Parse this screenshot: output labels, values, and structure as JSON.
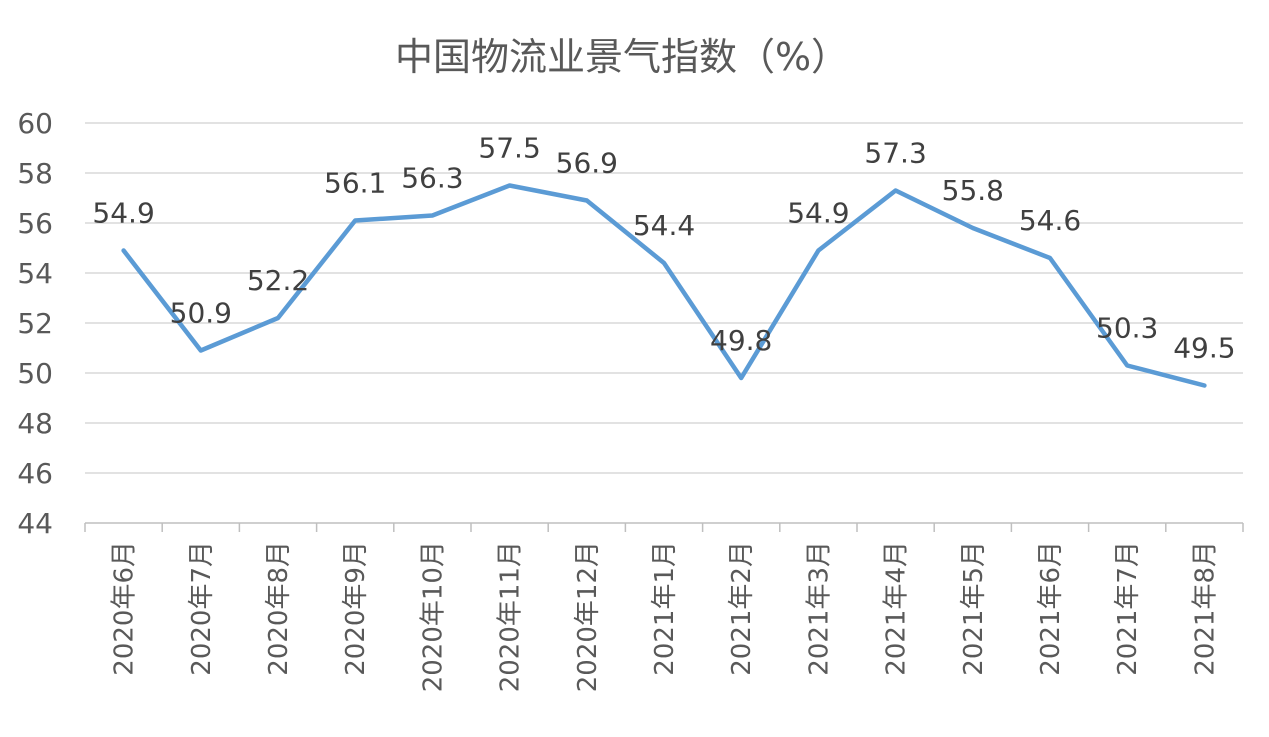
{
  "chart_data": {
    "type": "line",
    "title": "中国物流业景气指数（%）",
    "categories": [
      "2020年6月",
      "2020年7月",
      "2020年8月",
      "2020年9月",
      "2020年10月",
      "2020年11月",
      "2020年12月",
      "2021年1月",
      "2021年2月",
      "2021年3月",
      "2021年4月",
      "2021年5月",
      "2021年6月",
      "2021年7月",
      "2021年8月"
    ],
    "series": [
      {
        "values": [
          54.9,
          50.9,
          52.2,
          56.1,
          56.3,
          57.5,
          56.9,
          54.4,
          49.8,
          54.9,
          57.3,
          55.8,
          54.6,
          50.3,
          49.5
        ]
      }
    ],
    "data_labels": [
      "54.9",
      "50.9",
      "52.2",
      "56.1",
      "56.3",
      "57.5",
      "56.9",
      "54.4",
      "49.8",
      "54.9",
      "57.3",
      "55.8",
      "54.6",
      "50.3",
      "49.5"
    ],
    "y_ticks": [
      "44",
      "46",
      "48",
      "50",
      "52",
      "54",
      "56",
      "58",
      "60"
    ],
    "ylim": [
      44,
      60
    ],
    "grid": true,
    "legend": "none",
    "line_color": "#5b9bd5"
  }
}
